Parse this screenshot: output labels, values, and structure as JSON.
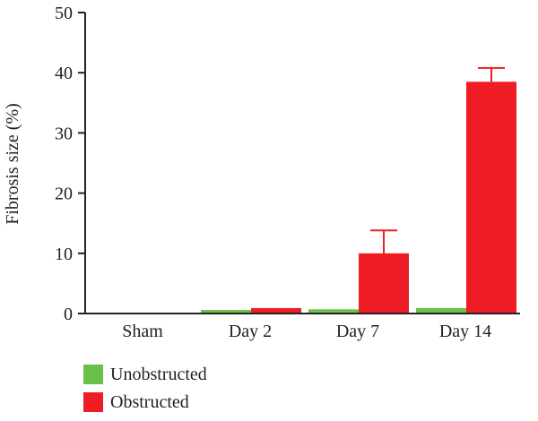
{
  "chart_data": {
    "type": "bar",
    "categories": [
      "Sham",
      "Day 2",
      "Day 7",
      "Day 14"
    ],
    "series": [
      {
        "name": "Unobstructed",
        "color": "#6cc04a",
        "values": [
          0,
          0.6,
          0.7,
          0.9
        ],
        "errors": [
          0,
          0,
          0,
          0
        ]
      },
      {
        "name": "Obstructed",
        "color": "#ee1c25",
        "values": [
          0,
          0.9,
          10.0,
          38.5
        ],
        "errors": [
          0,
          0,
          3.8,
          2.3
        ]
      }
    ],
    "title": "",
    "xlabel": "",
    "ylabel": "Fibrosis size (%)",
    "ylim": [
      0,
      50
    ],
    "yticks": [
      0,
      10,
      20,
      30,
      40,
      50
    ],
    "grid": false,
    "legend_position": "bottom-left"
  }
}
